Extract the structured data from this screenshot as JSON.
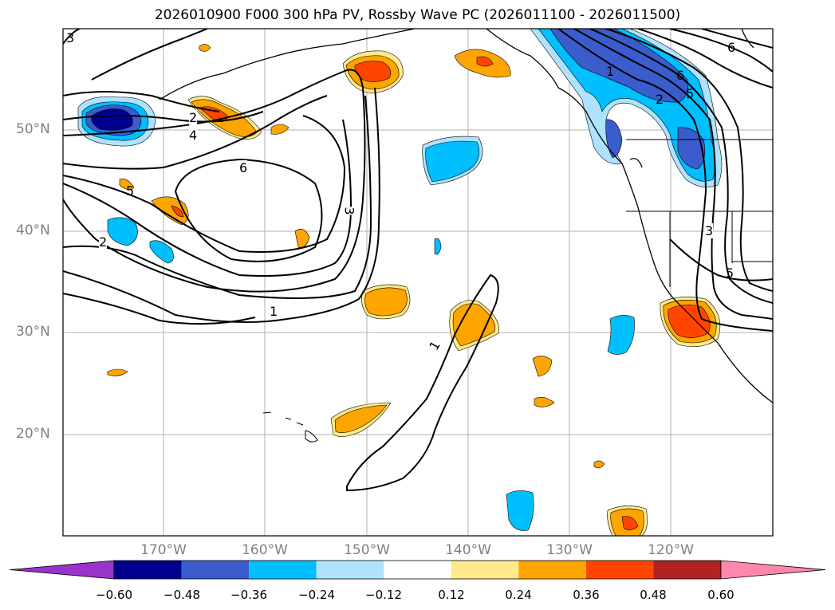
{
  "title": "2026010900 F000 300 hPa PV, Rossby Wave PC (2026011100 - 2026011500)",
  "lat_labels": [
    "50°N",
    "40°N",
    "30°N",
    "20°N"
  ],
  "lon_labels": [
    "170°W",
    "160°W",
    "150°W",
    "140°W",
    "130°W",
    "120°W"
  ],
  "contour_labels": [
    "3",
    "2",
    "4",
    "6",
    "5",
    "3",
    "2",
    "1",
    "1",
    "1",
    "2",
    "6",
    "5",
    "6",
    "3",
    "5"
  ],
  "colorbar": {
    "ticks": [
      "−0.60",
      "−0.48",
      "−0.36",
      "−0.24",
      "−0.12",
      "0.12",
      "0.24",
      "0.36",
      "0.48",
      "0.60"
    ],
    "colors": [
      "#9933cc",
      "#000090",
      "#3a5ccc",
      "#00bfff",
      "#aee2ff",
      "#ffffff",
      "#ffe98a",
      "#ffa500",
      "#ff4500",
      "#b22222",
      "#ff88aa"
    ]
  }
}
